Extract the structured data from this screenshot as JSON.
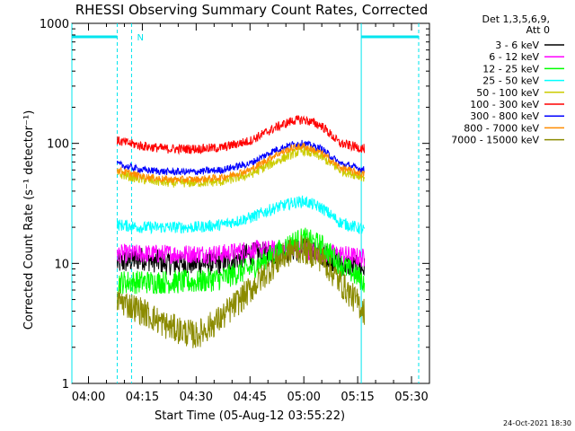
{
  "chart_data": {
    "type": "line",
    "title": "RHESSI Observing Summary Count Rates, Corrected",
    "xlabel": "Start Time (05-Aug-12 03:55:22)",
    "ylabel": "Corrected Count Rate (s⁻¹ detector⁻¹)",
    "y_scale": "log",
    "ylim": [
      1,
      1000
    ],
    "y_ticks": [
      "1",
      "10",
      "100",
      "1000"
    ],
    "xlim": [
      "03:55:22",
      "05:35:00"
    ],
    "x_ticks": [
      "04:00",
      "04:15",
      "04:30",
      "04:45",
      "05:00",
      "05:15",
      "05:30"
    ],
    "legend_header": [
      "Det 1,3,5,6,9,",
      "Att 0"
    ],
    "legend_position": "right",
    "timestamp": "24-Oct-2021 18:30",
    "night_flag": "N",
    "night_intervals": [
      [
        "03:55:22",
        "04:08:00"
      ],
      [
        "05:16:00",
        "05:32:00"
      ]
    ],
    "saa_intervals": [
      [
        "04:12:00",
        "04:12:00"
      ],
      [
        "05:32:00",
        "05:32:00"
      ]
    ],
    "data_start": "04:08:00",
    "data_end": "05:17:00",
    "x": [
      "04:08",
      "04:15",
      "04:22",
      "04:30",
      "04:37",
      "04:45",
      "04:52",
      "04:57",
      "05:00",
      "05:05",
      "05:10",
      "05:17"
    ],
    "series": [
      {
        "name": "3 - 6 keV",
        "color": "#000000",
        "noise": 0.1,
        "values": [
          10,
          11,
          10,
          10,
          10,
          12,
          12,
          13,
          13,
          12,
          10,
          9
        ]
      },
      {
        "name": "6 - 12 keV",
        "color": "#ff00ff",
        "noise": 0.08,
        "values": [
          12,
          12,
          12,
          12,
          12,
          13,
          13,
          13,
          13,
          12,
          12,
          11
        ]
      },
      {
        "name": "12 - 25 keV",
        "color": "#00ff00",
        "noise": 0.1,
        "values": [
          7,
          7,
          7,
          7,
          7.5,
          9,
          12,
          15,
          16,
          14,
          10,
          7
        ]
      },
      {
        "name": "25 - 50 keV",
        "color": "#00ffff",
        "noise": 0.05,
        "values": [
          21,
          20,
          20,
          20,
          21,
          24,
          29,
          32,
          33,
          29,
          22,
          19
        ]
      },
      {
        "name": "50 - 100 keV",
        "color": "#cccc00",
        "noise": 0.04,
        "values": [
          56,
          50,
          47,
          47,
          48,
          55,
          70,
          82,
          87,
          77,
          60,
          52
        ]
      },
      {
        "name": "100 - 300 keV",
        "color": "#ff0000",
        "noise": 0.04,
        "values": [
          105,
          95,
          90,
          90,
          92,
          105,
          135,
          155,
          158,
          140,
          100,
          90
        ]
      },
      {
        "name": "300 - 800 keV",
        "color": "#0000ff",
        "noise": 0.03,
        "values": [
          67,
          60,
          58,
          58,
          60,
          68,
          88,
          98,
          100,
          90,
          68,
          60
        ]
      },
      {
        "name": "800 - 7000 keV",
        "color": "#ff8c00",
        "noise": 0.03,
        "values": [
          60,
          53,
          50,
          50,
          52,
          60,
          80,
          92,
          95,
          83,
          63,
          55
        ]
      },
      {
        "name": "7000 - 15000 keV",
        "color": "#8b8b00",
        "noise": 0.12,
        "values": [
          5,
          4,
          3,
          2.5,
          3.5,
          6,
          10,
          13,
          13,
          11,
          7,
          4
        ]
      }
    ]
  }
}
